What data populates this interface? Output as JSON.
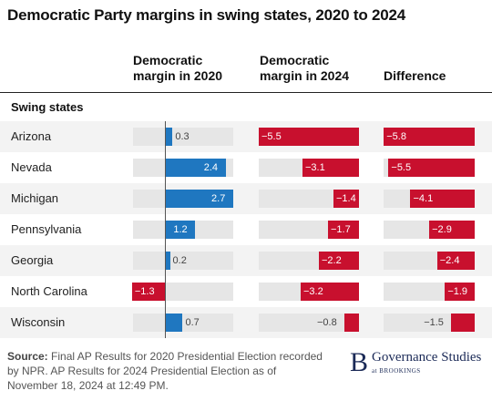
{
  "title": "Democratic Party margins in swing states, 2020 to 2024",
  "columns": {
    "c2020": [
      "Democratic",
      "margin in 2020"
    ],
    "c2024": [
      "Democratic",
      "margin in 2024"
    ],
    "diff": "Difference"
  },
  "section_label": "Swing states",
  "chart_data": {
    "type": "bar",
    "categories": [
      "Arizona",
      "Nevada",
      "Michigan",
      "Pennsylvania",
      "Georgia",
      "North Carolina",
      "Wisconsin"
    ],
    "series": [
      {
        "name": "Democratic margin in 2020",
        "values": [
          0.3,
          2.4,
          2.7,
          1.2,
          0.2,
          -1.3,
          0.7
        ]
      },
      {
        "name": "Democratic margin in 2024",
        "values": [
          -5.5,
          -3.1,
          -1.4,
          -1.7,
          -2.2,
          -3.2,
          -0.8
        ]
      },
      {
        "name": "Difference",
        "values": [
          -5.8,
          -5.5,
          -4.1,
          -2.9,
          -2.4,
          -1.9,
          -1.5
        ]
      }
    ],
    "colors": {
      "positive": "#1f77c0",
      "negative": "#c8102e",
      "track": "#e6e6e6"
    }
  },
  "source": {
    "label": "Source:",
    "text": "Final AP Results for 2020 Presidential Election recorded by NPR. AP Results for 2024 Presidential Election as of November 18, 2024 at 12:49 PM."
  },
  "logo": {
    "letter": "B",
    "name": "Governance Studies",
    "org": "at BROOKINGS"
  }
}
